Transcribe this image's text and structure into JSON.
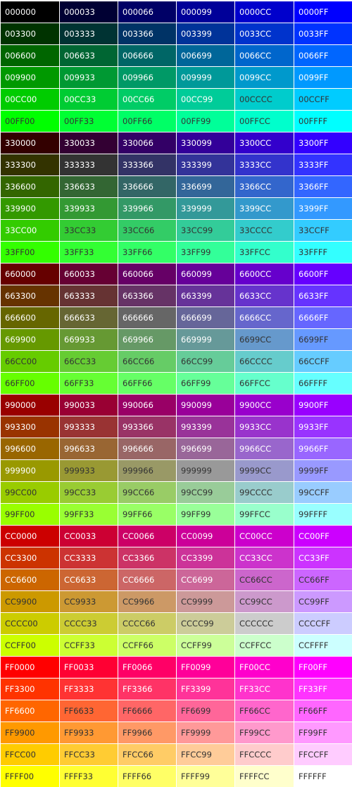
{
  "palette": {
    "rows": [
      [
        "000000",
        "000033",
        "000066",
        "000099",
        "0000CC",
        "0000FF"
      ],
      [
        "003300",
        "003333",
        "003366",
        "003399",
        "0033CC",
        "0033FF"
      ],
      [
        "006600",
        "006633",
        "006666",
        "006699",
        "0066CC",
        "0066FF"
      ],
      [
        "009900",
        "009933",
        "009966",
        "009999",
        "0099CC",
        "0099FF"
      ],
      [
        "00CC00",
        "00CC33",
        "00CC66",
        "00CC99",
        "00CCCC",
        "00CCFF"
      ],
      [
        "00FF00",
        "00FF33",
        "00FF66",
        "00FF99",
        "00FFCC",
        "00FFFF"
      ],
      [
        "330000",
        "330033",
        "330066",
        "330099",
        "3300CC",
        "3300FF"
      ],
      [
        "333300",
        "333333",
        "333366",
        "333399",
        "3333CC",
        "3333FF"
      ],
      [
        "336600",
        "336633",
        "336666",
        "336699",
        "3366CC",
        "3366FF"
      ],
      [
        "339900",
        "339933",
        "339966",
        "339999",
        "3399CC",
        "3399FF"
      ],
      [
        "33CC00",
        "33CC33",
        "33CC66",
        "33CC99",
        "33CCCC",
        "33CCFF"
      ],
      [
        "33FF00",
        "33FF33",
        "33FF66",
        "33FF99",
        "33FFCC",
        "33FFFF"
      ],
      [
        "660000",
        "660033",
        "660066",
        "660099",
        "6600CC",
        "6600FF"
      ],
      [
        "663300",
        "663333",
        "663366",
        "663399",
        "6633CC",
        "6633FF"
      ],
      [
        "666600",
        "666633",
        "666666",
        "666699",
        "6666CC",
        "6666FF"
      ],
      [
        "669900",
        "669933",
        "669966",
        "669999",
        "6699CC",
        "6699FF"
      ],
      [
        "66CC00",
        "66CC33",
        "66CC66",
        "66CC99",
        "66CCCC",
        "66CCFF"
      ],
      [
        "66FF00",
        "66FF33",
        "66FF66",
        "66FF99",
        "66FFCC",
        "66FFFF"
      ],
      [
        "990000",
        "990033",
        "990066",
        "990099",
        "9900CC",
        "9900FF"
      ],
      [
        "993300",
        "993333",
        "993366",
        "993399",
        "9933CC",
        "9933FF"
      ],
      [
        "996600",
        "996633",
        "996666",
        "996699",
        "9966CC",
        "9966FF"
      ],
      [
        "999900",
        "999933",
        "999966",
        "999999",
        "9999CC",
        "9999FF"
      ],
      [
        "99CC00",
        "99CC33",
        "99CC66",
        "99CC99",
        "99CCCC",
        "99CCFF"
      ],
      [
        "99FF00",
        "99FF33",
        "99FF66",
        "99FF99",
        "99FFCC",
        "99FFFF"
      ],
      [
        "CC0000",
        "CC0033",
        "CC0066",
        "CC0099",
        "CC00CC",
        "CC00FF"
      ],
      [
        "CC3300",
        "CC3333",
        "CC3366",
        "CC3399",
        "CC33CC",
        "CC33FF"
      ],
      [
        "CC6600",
        "CC6633",
        "CC6666",
        "CC6699",
        "CC66CC",
        "CC66FF"
      ],
      [
        "CC9900",
        "CC9933",
        "CC9966",
        "CC9999",
        "CC99CC",
        "CC99FF"
      ],
      [
        "CCCC00",
        "CCCC33",
        "CCCC66",
        "CCCC99",
        "CCCCCC",
        "CCCCFF"
      ],
      [
        "CCFF00",
        "CCFF33",
        "CCFF66",
        "CCFF99",
        "CCFFCC",
        "CCFFFF"
      ],
      [
        "FF0000",
        "FF0033",
        "FF0066",
        "FF0099",
        "FF00CC",
        "FF00FF"
      ],
      [
        "FF3300",
        "FF3333",
        "FF3366",
        "FF3399",
        "FF33CC",
        "FF33FF"
      ],
      [
        "FF6600",
        "FF6633",
        "FF6666",
        "FF6699",
        "FF66CC",
        "FF66FF"
      ],
      [
        "FF9900",
        "FF9933",
        "FF9966",
        "FF9999",
        "FF99CC",
        "FF99FF"
      ],
      [
        "FFCC00",
        "FFCC33",
        "FFCC66",
        "FFCC99",
        "FFCCCC",
        "FFCCFF"
      ],
      [
        "FFFF00",
        "FFFF33",
        "FFFF66",
        "FFFF99",
        "FFFFCC",
        "FFFFFF"
      ]
    ]
  }
}
